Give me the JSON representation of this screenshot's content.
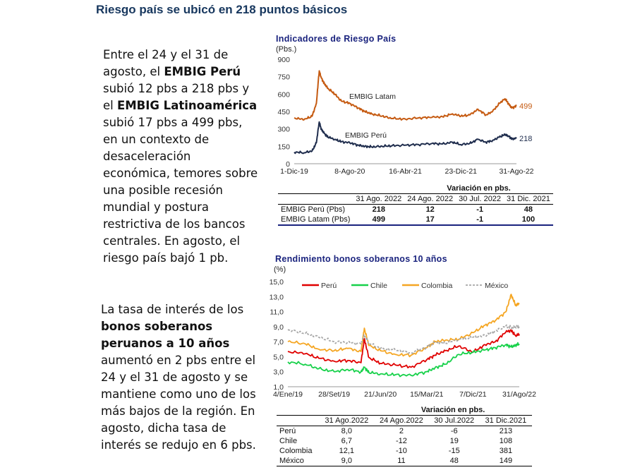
{
  "slide_title": "Riesgo país se ubicó en 218 puntos básicos",
  "paragraph1": {
    "t1": "Entre el 24 y el 31 de agosto, el ",
    "b1": "EMBIG Perú",
    "t2": " subió 12 pbs a 218 pbs y el ",
    "b2": "EMBIG Latinoamérica",
    "t3": " subió 17 pbs a 499 pbs, en un contexto de desaceleración económica, temores sobre una posible recesión mundial y postura restrictiva de los bancos centrales. En agosto, el riesgo país bajó 1 pb."
  },
  "paragraph2": {
    "t1": "La tasa de interés de los ",
    "b1": "bonos soberanos peruanos a 10 años",
    "t2": " aumentó en 2 pbs entre el 24 y el 31 de agosto y se mantiene como uno de los más bajos de la región. En agosto, dicha tasa de interés se redujo en 6 pbs."
  },
  "chart_data": [
    {
      "type": "line",
      "title": "Indicadores de Riesgo País",
      "ylabel": "(Pbs.)",
      "ylim": [
        0,
        900
      ],
      "yticks": [
        "0",
        "150",
        "300",
        "450",
        "600",
        "750",
        "900"
      ],
      "xticks": [
        "1-Dic-19",
        "8-Ago-20",
        "16-Abr-21",
        "23-Dic-21",
        "31-Ago-22"
      ],
      "grid": false,
      "series": [
        {
          "name": "EMBIG Latam",
          "color": "#c55a11",
          "end_label": "499",
          "x": [
            "2019-12-01",
            "2020-01-15",
            "2020-02-20",
            "2020-03-10",
            "2020-03-23",
            "2020-04-01",
            "2020-04-15",
            "2020-05-01",
            "2020-06-01",
            "2020-07-01",
            "2020-08-08",
            "2020-09-15",
            "2020-10-15",
            "2020-11-15",
            "2021-01-01",
            "2021-02-15",
            "2021-04-16",
            "2021-06-15",
            "2021-08-15",
            "2021-10-01",
            "2021-11-15",
            "2021-12-23",
            "2022-02-01",
            "2022-03-10",
            "2022-04-15",
            "2022-05-15",
            "2022-06-15",
            "2022-07-10",
            "2022-07-25",
            "2022-08-10",
            "2022-08-31"
          ],
          "values": [
            395,
            380,
            410,
            520,
            800,
            740,
            690,
            650,
            600,
            540,
            520,
            480,
            450,
            430,
            410,
            390,
            385,
            395,
            400,
            405,
            430,
            410,
            420,
            470,
            420,
            450,
            520,
            560,
            520,
            480,
            499
          ]
        },
        {
          "name": "EMBIG Perú",
          "color": "#1f2d4d",
          "end_label": "218",
          "x": [
            "2019-12-01",
            "2020-01-15",
            "2020-02-20",
            "2020-03-10",
            "2020-03-23",
            "2020-04-01",
            "2020-04-15",
            "2020-05-01",
            "2020-06-01",
            "2020-07-01",
            "2020-08-08",
            "2020-09-15",
            "2020-10-15",
            "2020-11-15",
            "2021-01-01",
            "2021-02-15",
            "2021-04-16",
            "2021-06-15",
            "2021-08-15",
            "2021-10-01",
            "2021-11-15",
            "2021-12-23",
            "2022-02-01",
            "2022-03-10",
            "2022-04-15",
            "2022-05-15",
            "2022-06-15",
            "2022-07-10",
            "2022-07-25",
            "2022-08-10",
            "2022-08-31"
          ],
          "values": [
            100,
            95,
            110,
            180,
            360,
            300,
            260,
            230,
            210,
            190,
            180,
            160,
            150,
            145,
            150,
            155,
            160,
            165,
            175,
            170,
            185,
            165,
            175,
            210,
            185,
            200,
            230,
            250,
            240,
            215,
            218
          ]
        }
      ],
      "table": {
        "group_header": "Variación en pbs.",
        "columns": [
          "31 Ago. 2022",
          "24 Ago. 2022",
          "30 Jul. 2022",
          "31 Dic. 2021"
        ],
        "rows": [
          {
            "label": "EMBIG Perú (Pbs)",
            "values": [
              "218",
              "12",
              "-1",
              "48"
            ]
          },
          {
            "label": "EMBIG Latam (Pbs)",
            "values": [
              "499",
              "17",
              "-1",
              "100"
            ]
          }
        ]
      }
    },
    {
      "type": "line",
      "title": "Rendimiento bonos soberanos 10 años",
      "ylabel": "(%)",
      "ylim": [
        1.0,
        15.0
      ],
      "yticks": [
        "1,0",
        "3,0",
        "5,0",
        "7,0",
        "9,0",
        "11,0",
        "13,0",
        "15,0"
      ],
      "xticks": [
        "4/Ene/19",
        "28/Set/19",
        "21/Jun/20",
        "15/Mar/21",
        "7/Dic/21",
        "31/Ago/22"
      ],
      "legend_position": "top",
      "grid": false,
      "series": [
        {
          "name": "Perú",
          "color": "#e00000",
          "dash": false,
          "x": [
            "2019-01-04",
            "2019-04-15",
            "2019-07-01",
            "2019-09-28",
            "2019-12-15",
            "2020-03-01",
            "2020-03-20",
            "2020-04-15",
            "2020-06-21",
            "2020-09-15",
            "2020-12-15",
            "2021-03-15",
            "2021-05-01",
            "2021-07-01",
            "2021-09-15",
            "2021-12-07",
            "2022-02-15",
            "2022-04-15",
            "2022-06-15",
            "2022-07-15",
            "2022-08-10",
            "2022-08-31"
          ],
          "values": [
            5.7,
            5.4,
            4.8,
            4.4,
            4.5,
            4.2,
            7.4,
            4.9,
            4.1,
            3.9,
            3.6,
            4.6,
            5.2,
            5.8,
            6.4,
            5.6,
            6.6,
            7.0,
            8.3,
            8.5,
            7.8,
            8.0
          ]
        },
        {
          "name": "Chile",
          "color": "#17d14a",
          "dash": false,
          "x": [
            "2019-01-04",
            "2019-04-15",
            "2019-07-01",
            "2019-09-28",
            "2019-12-15",
            "2020-03-01",
            "2020-03-20",
            "2020-04-15",
            "2020-06-21",
            "2020-09-15",
            "2020-12-15",
            "2021-03-15",
            "2021-05-01",
            "2021-07-01",
            "2021-09-15",
            "2021-12-07",
            "2022-02-15",
            "2022-04-15",
            "2022-06-15",
            "2022-07-15",
            "2022-08-10",
            "2022-08-31"
          ],
          "values": [
            4.3,
            4.0,
            3.4,
            3.0,
            3.3,
            3.0,
            3.6,
            2.9,
            2.7,
            2.6,
            2.5,
            3.0,
            3.5,
            4.0,
            5.3,
            5.6,
            5.9,
            6.2,
            6.6,
            6.3,
            6.5,
            6.7
          ]
        },
        {
          "name": "Colombia",
          "color": "#f5a623",
          "dash": false,
          "x": [
            "2019-01-04",
            "2019-04-15",
            "2019-07-01",
            "2019-09-28",
            "2019-12-15",
            "2020-03-01",
            "2020-03-20",
            "2020-04-15",
            "2020-06-21",
            "2020-09-15",
            "2020-12-15",
            "2021-03-15",
            "2021-05-01",
            "2021-07-01",
            "2021-09-15",
            "2021-12-07",
            "2022-02-15",
            "2022-04-15",
            "2022-06-15",
            "2022-07-15",
            "2022-08-10",
            "2022-08-31"
          ],
          "values": [
            7.0,
            6.7,
            6.0,
            5.8,
            6.1,
            5.7,
            8.8,
            6.5,
            5.8,
            5.3,
            5.2,
            6.2,
            7.0,
            7.2,
            7.3,
            8.2,
            9.2,
            9.8,
            11.0,
            13.3,
            11.8,
            12.1
          ]
        },
        {
          "name": "México",
          "color": "#a6a6a6",
          "dash": true,
          "x": [
            "2019-01-04",
            "2019-04-15",
            "2019-07-01",
            "2019-09-28",
            "2019-12-15",
            "2020-03-01",
            "2020-03-20",
            "2020-04-15",
            "2020-06-21",
            "2020-09-15",
            "2020-12-15",
            "2021-03-15",
            "2021-05-01",
            "2021-07-01",
            "2021-09-15",
            "2021-12-07",
            "2022-02-15",
            "2022-04-15",
            "2022-06-15",
            "2022-07-15",
            "2022-08-10",
            "2022-08-31"
          ],
          "values": [
            8.6,
            8.1,
            7.6,
            7.0,
            6.9,
            6.7,
            7.9,
            6.8,
            6.1,
            5.9,
            5.5,
            6.3,
            6.9,
            6.8,
            7.3,
            7.6,
            7.8,
            8.4,
            9.1,
            8.9,
            8.9,
            9.0
          ]
        }
      ],
      "table": {
        "group_header": "Variación en pbs.",
        "columns": [
          "31 Ago.2022",
          "24 Ago.2022",
          "30 Jul.2022",
          "31 Dic.2021"
        ],
        "rows": [
          {
            "label": "Perú",
            "values": [
              "8,0",
              "2",
              "-6",
              "213"
            ]
          },
          {
            "label": "Chile",
            "values": [
              "6,7",
              "-12",
              "19",
              "108"
            ]
          },
          {
            "label": "Colombia",
            "values": [
              "12,1",
              "-10",
              "-15",
              "381"
            ]
          },
          {
            "label": "México",
            "values": [
              "9,0",
              "11",
              "48",
              "149"
            ]
          }
        ]
      }
    }
  ]
}
